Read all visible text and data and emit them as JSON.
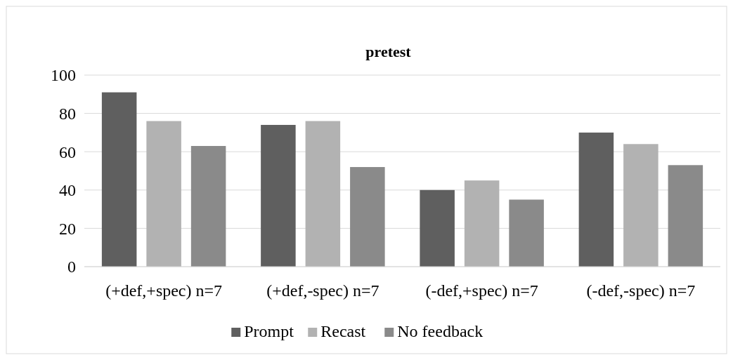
{
  "chart_data": {
    "type": "bar",
    "title": "pretest",
    "categories": [
      "(+def,+spec) n=7",
      "(+def,-spec) n=7",
      "(-def,+spec) n=7",
      "(-def,-spec) n=7"
    ],
    "series": [
      {
        "name": "Prompt",
        "color": "#5f5f5f",
        "values": [
          91,
          74,
          40,
          70
        ]
      },
      {
        "name": "Recast",
        "color": "#b2b2b2",
        "values": [
          76,
          76,
          45,
          64
        ]
      },
      {
        "name": "No feedback",
        "color": "#8a8a8a",
        "values": [
          63,
          52,
          35,
          53
        ]
      }
    ],
    "ylim": [
      0,
      100
    ],
    "yticks": [
      0,
      20,
      40,
      60,
      80,
      100
    ],
    "grid": "y",
    "legend": "bottom"
  }
}
